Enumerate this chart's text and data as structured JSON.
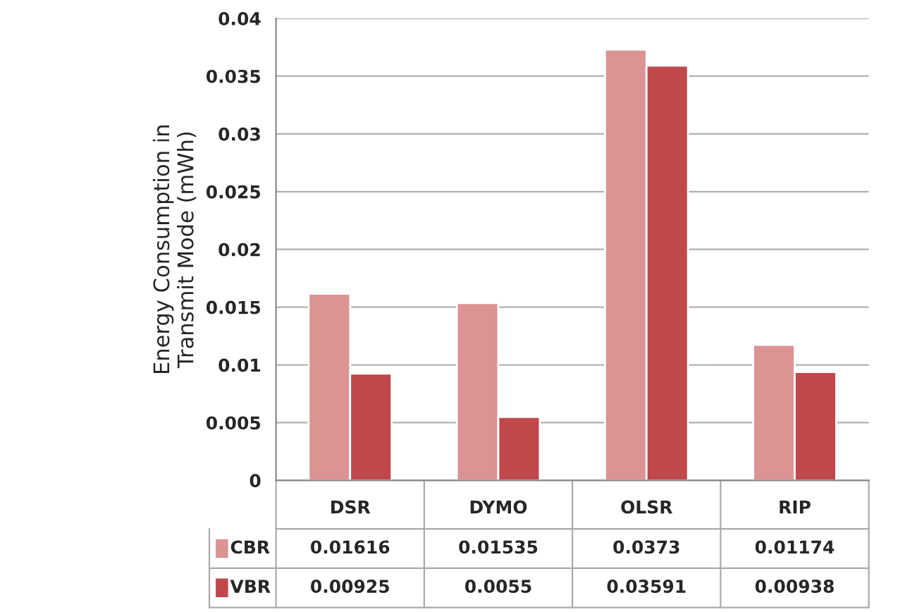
{
  "chart_data": {
    "type": "bar",
    "ylabel": "Energy Consumption in\nTransmit Mode (mWh)",
    "categories": [
      "DSR",
      "DYMO",
      "OLSR",
      "RIP"
    ],
    "series": [
      {
        "name": "CBR",
        "color": "#dc9393",
        "values": [
          0.01616,
          0.01535,
          0.0373,
          0.01174
        ]
      },
      {
        "name": "VBR",
        "color": "#c0474a",
        "values": [
          0.00925,
          0.0055,
          0.03591,
          0.00938
        ]
      }
    ],
    "ylim": [
      0,
      0.04
    ],
    "yticks": [
      0,
      0.005,
      0.01,
      0.015,
      0.02,
      0.025,
      0.03,
      0.035,
      0.04
    ],
    "grid": "y",
    "legend": "bottom",
    "data_labels": true
  }
}
